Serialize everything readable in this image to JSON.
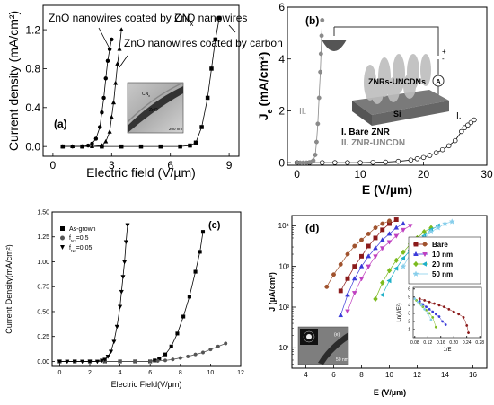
{
  "chart_data": [
    {
      "id": "a",
      "type": "line",
      "panel_label": "(a)",
      "xlabel": "Electric field (V/µm)",
      "ylabel": "Current density (mA/cm²)",
      "xlim": [
        -0.5,
        9.5
      ],
      "ylim": [
        -0.1,
        1.45
      ],
      "xticks": [
        0,
        3,
        6,
        9
      ],
      "yticks": [
        0.0,
        0.4,
        0.8,
        1.2
      ],
      "xtick_labels": [
        "0",
        "3",
        "6",
        "9"
      ],
      "ytick_labels": [
        "0.0",
        "0.4",
        "0.8",
        "1.2"
      ],
      "series": [
        {
          "name": "ZnO nanowires coated by CN",
          "name_sub": "x",
          "marker": "circle",
          "x": [
            0.5,
            1.0,
            1.5,
            1.8,
            2.0,
            2.2,
            2.4,
            2.5,
            2.6,
            2.7,
            2.8,
            2.9,
            3.0
          ],
          "y": [
            0,
            0,
            0,
            0.01,
            0.03,
            0.08,
            0.2,
            0.35,
            0.5,
            0.7,
            0.88,
            1.0,
            1.1
          ]
        },
        {
          "name": "ZnO nanowires coated by carbon",
          "marker": "triangle",
          "x": [
            0.5,
            1.0,
            1.5,
            2.0,
            2.5,
            2.7,
            2.9,
            3.0,
            3.1,
            3.2,
            3.3,
            3.4,
            3.5
          ],
          "y": [
            0,
            0,
            0,
            0,
            0.01,
            0.05,
            0.15,
            0.3,
            0.45,
            0.65,
            0.85,
            1.0,
            1.2
          ]
        },
        {
          "name": "ZnO nanowires",
          "marker": "square",
          "x": [
            0.5,
            1.5,
            2.5,
            3.5,
            4.5,
            5.5,
            6.5,
            7.0,
            7.3,
            7.6,
            7.9,
            8.1,
            8.3,
            8.5
          ],
          "y": [
            0,
            0,
            0,
            0,
            0,
            0,
            0,
            0.01,
            0.04,
            0.2,
            0.5,
            0.8,
            1.1,
            1.32
          ]
        }
      ],
      "inset": {
        "labels": [
          "CN",
          "ZnO",
          "200 nm"
        ],
        "label_sub": "x"
      }
    },
    {
      "id": "b",
      "type": "line",
      "panel_label": "(b)",
      "xlabel": "E (V/µm)",
      "ylabel": "J",
      "ylabel_sub": "e",
      "ylabel_unit": "(mA/cm²)",
      "xlim": [
        -1.5,
        30
      ],
      "ylim": [
        -0.1,
        6
      ],
      "xticks": [
        0,
        10,
        20,
        30
      ],
      "yticks": [
        0,
        2,
        4,
        6
      ],
      "xtick_labels": [
        "0",
        "10",
        "20",
        "30"
      ],
      "ytick_labels": [
        "0",
        "2",
        "4",
        "6"
      ],
      "series": [
        {
          "name": "I. Bare ZNR",
          "short_label": "I.",
          "marker": "open-circle",
          "x": [
            0,
            2,
            4,
            6,
            8,
            10,
            12,
            14,
            16,
            18,
            19,
            20,
            21,
            22,
            23,
            24,
            25,
            26,
            26.5,
            27,
            27.5,
            28
          ],
          "y": [
            0,
            0,
            0,
            0,
            0,
            0,
            0.01,
            0.02,
            0.05,
            0.1,
            0.15,
            0.2,
            0.28,
            0.38,
            0.5,
            0.65,
            0.85,
            1.2,
            1.35,
            1.45,
            1.55,
            1.65
          ]
        },
        {
          "name": "II. ZNR-UNCDN",
          "short_label": "II.",
          "marker": "filled-circle",
          "x": [
            0,
            0.5,
            1,
            1.5,
            2,
            2.3,
            2.6,
            2.9,
            3.1,
            3.3,
            3.5,
            3.7,
            3.8,
            3.9,
            4.0
          ],
          "y": [
            0,
            0,
            0,
            0,
            0.01,
            0.03,
            0.08,
            0.3,
            0.8,
            1.5,
            2.5,
            3.5,
            4.2,
            4.9,
            5.5
          ]
        }
      ],
      "inset": {
        "labels": [
          "ZNRs-UNCDNs",
          "Si",
          "A",
          "+",
          "-"
        ]
      }
    },
    {
      "id": "c",
      "type": "line",
      "panel_label": "(c)",
      "xlabel": "Electric Field(V/µm)",
      "ylabel": "Current Density(mA/cm²)",
      "xlim": [
        -0.5,
        12
      ],
      "ylim": [
        -0.05,
        1.5
      ],
      "xticks": [
        0,
        2,
        4,
        6,
        8,
        10,
        12
      ],
      "yticks": [
        0.0,
        0.25,
        0.5,
        0.75,
        1.0,
        1.25,
        1.5
      ],
      "xtick_labels": [
        "0",
        "2",
        "4",
        "6",
        "8",
        "10",
        "12"
      ],
      "ytick_labels": [
        "0.00",
        "0.25",
        "0.50",
        "0.75",
        "1.00",
        "1.25",
        "1.50"
      ],
      "legend": {
        "placement": "top-left"
      },
      "series": [
        {
          "name": "As-grown",
          "marker": "square",
          "x": [
            0,
            1,
            2,
            3,
            4,
            5,
            6,
            6.3,
            6.6,
            7.0,
            7.4,
            7.8,
            8.2,
            8.6,
            9.0,
            9.3,
            9.5
          ],
          "y": [
            0,
            0,
            0,
            0,
            0,
            0,
            0,
            0.01,
            0.03,
            0.07,
            0.15,
            0.28,
            0.45,
            0.65,
            0.9,
            1.1,
            1.3
          ]
        },
        {
          "name": "f",
          "name_sub": "N2",
          "name_suffix": "=0.5",
          "marker": "circle",
          "x": [
            0,
            1,
            2,
            3,
            4,
            5,
            6,
            6.5,
            7,
            7.5,
            8,
            8.5,
            9,
            9.5,
            10,
            10.5,
            11
          ],
          "y": [
            0,
            0,
            0,
            0,
            0,
            0,
            0,
            0.005,
            0.01,
            0.02,
            0.035,
            0.05,
            0.07,
            0.09,
            0.12,
            0.15,
            0.18
          ]
        },
        {
          "name": "f",
          "name_sub": "N2",
          "name_suffix": "=0.05",
          "marker": "triangle-down",
          "x": [
            0,
            0.5,
            1,
            1.5,
            2,
            2.5,
            2.8,
            3.0,
            3.2,
            3.4,
            3.6,
            3.8,
            4.0,
            4.1,
            4.2,
            4.3,
            4.4,
            4.5
          ],
          "y": [
            0,
            0,
            0,
            0,
            0,
            0,
            0.01,
            0.02,
            0.05,
            0.1,
            0.2,
            0.35,
            0.55,
            0.7,
            0.85,
            1.0,
            1.2,
            1.37
          ]
        }
      ]
    },
    {
      "id": "d",
      "type": "scatter",
      "panel_label": "(d)",
      "xlabel": "E (V/µm)",
      "ylabel": "J (µA/cm²)",
      "scale_y": "log",
      "xlim": [
        3,
        17
      ],
      "ylim_log": [
        0.5,
        4.25
      ],
      "xticks": [
        4,
        6,
        8,
        10,
        12,
        14,
        16
      ],
      "xtick_labels": [
        "4",
        "6",
        "8",
        "10",
        "12",
        "14",
        "16"
      ],
      "ytick_exp": [
        1,
        2,
        3,
        4
      ],
      "ytick_labels": [
        "10¹",
        "10²",
        "10³",
        "10⁴"
      ],
      "legend": {
        "placement": "top-right"
      },
      "series": [
        {
          "name": "Bare",
          "color": "#8b1a1a",
          "marker": "square",
          "x": [
            6.5,
            7,
            7.5,
            8,
            8.5,
            9,
            9.5,
            10,
            10.5
          ],
          "log_y": [
            2.4,
            2.7,
            3.0,
            3.25,
            3.5,
            3.7,
            3.9,
            4.05,
            4.15
          ]
        },
        {
          "name": "",
          "color": "#a0522d",
          "marker": "circle",
          "x": [
            5.5,
            6,
            6.5,
            7,
            7.5,
            8,
            8.5,
            9,
            9.5,
            10
          ],
          "log_y": [
            2.5,
            2.8,
            3.05,
            3.3,
            3.5,
            3.65,
            3.8,
            3.95,
            4.05,
            4.12
          ]
        },
        {
          "name": "10 nm",
          "color": "#3a3ad9",
          "marker": "triangle",
          "x": [
            6.5,
            7,
            7.5,
            8,
            8.5,
            9,
            9.5,
            10,
            10.5,
            11
          ],
          "log_y": [
            1.8,
            2.3,
            2.7,
            3.0,
            3.25,
            3.45,
            3.65,
            3.8,
            3.95,
            4.05
          ]
        },
        {
          "name": "",
          "color": "#c040c0",
          "marker": "triangle-down",
          "x": [
            7,
            7.5,
            8,
            8.5,
            9,
            9.5,
            10,
            10.5,
            11,
            11.5
          ],
          "log_y": [
            1.9,
            2.35,
            2.7,
            3.0,
            3.25,
            3.45,
            3.6,
            3.75,
            3.9,
            4.0
          ]
        },
        {
          "name": "20 nm",
          "color": "#7cbb1f",
          "marker": "diamond",
          "x": [
            9,
            9.5,
            10,
            10.5,
            11,
            11.5,
            12,
            12.5,
            13
          ],
          "log_y": [
            2.2,
            2.6,
            2.9,
            3.15,
            3.35,
            3.55,
            3.7,
            3.85,
            3.95
          ]
        },
        {
          "name": "",
          "color": "#1fb0c8",
          "marker": "triangle-left",
          "x": [
            9.5,
            10,
            10.5,
            11,
            11.5,
            12,
            12.5,
            13,
            13.5
          ],
          "log_y": [
            2.3,
            2.65,
            2.95,
            3.2,
            3.4,
            3.6,
            3.75,
            3.9,
            4.0
          ]
        },
        {
          "name": "50 nm",
          "color": "#87ceeb",
          "marker": "star",
          "x": [
            11,
            11.5,
            12,
            12.5,
            13,
            13.5,
            14,
            14.5
          ],
          "log_y": [
            3.0,
            3.3,
            3.5,
            3.7,
            3.85,
            3.95,
            4.05,
            4.1
          ]
        }
      ],
      "inset_plot": {
        "xlabel": "1/E",
        "ylabel": "Ln(J/E²)",
        "xticks": [
          0.08,
          0.12,
          0.16,
          0.2,
          0.24,
          0.28
        ],
        "xtick_labels": [
          "0.08",
          "0.12",
          "0.16",
          "0.20",
          "0.24",
          "0.28"
        ],
        "yticks": [
          1,
          2,
          3,
          4,
          5,
          6
        ],
        "ytick_labels": [
          "1",
          "2",
          "3",
          "4",
          "5",
          "6"
        ],
        "xlim": [
          0.075,
          0.285
        ],
        "ylim": [
          0,
          6.2
        ],
        "series": [
          {
            "color": "#8b1a1a",
            "x": [
              0.095,
              0.11,
              0.125,
              0.14,
              0.155,
              0.17,
              0.185,
              0.2,
              0.215,
              0.23,
              0.24,
              0.245
            ],
            "y": [
              4.8,
              4.6,
              4.4,
              4.2,
              4.0,
              3.8,
              3.5,
              3.2,
              2.9,
              2.5,
              1.5,
              0.6
            ]
          },
          {
            "color": "#3a3ad9",
            "x": [
              0.095,
              0.105,
              0.115,
              0.125,
              0.135,
              0.145,
              0.155,
              0.165,
              0.175
            ],
            "y": [
              4.5,
              4.1,
              3.8,
              3.5,
              3.2,
              2.9,
              2.6,
              2.0,
              1.6
            ]
          },
          {
            "color": "#7cbb1f",
            "x": [
              0.085,
              0.095,
              0.105,
              0.115,
              0.125,
              0.135,
              0.145
            ],
            "y": [
              4.6,
              4.2,
              3.8,
              3.4,
              3.0,
              2.5,
              1.3
            ]
          },
          {
            "color": "#87ceeb",
            "x": [
              0.08,
              0.09,
              0.1,
              0.11,
              0.12,
              0.13
            ],
            "y": [
              4.8,
              4.4,
              4.0,
              3.5,
              3.0,
              2.2
            ]
          }
        ]
      },
      "inset_image": {
        "labels": [
          "(e)",
          "50 nm"
        ]
      }
    }
  ]
}
